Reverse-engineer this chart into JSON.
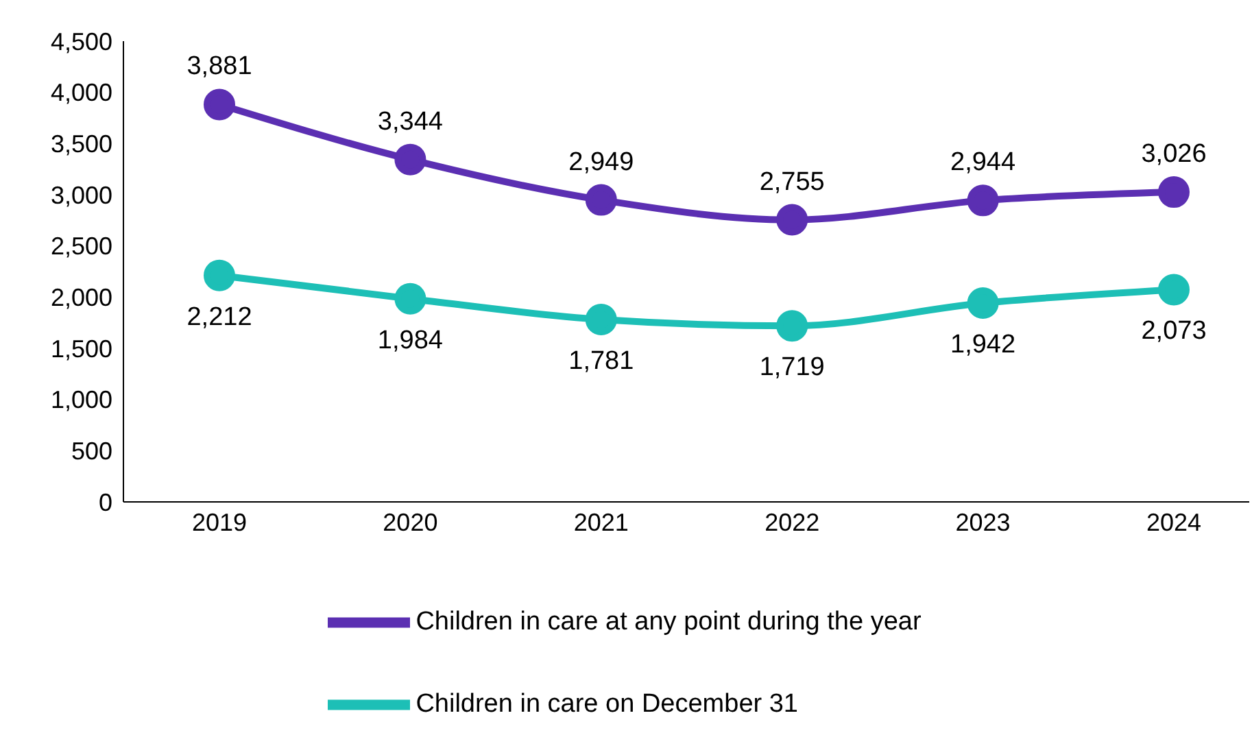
{
  "chart_data": {
    "type": "line",
    "categories": [
      "2019",
      "2020",
      "2021",
      "2022",
      "2023",
      "2024"
    ],
    "series": [
      {
        "name": "Children in care at any point during the year",
        "color": "#5b2fb2",
        "values": [
          3881,
          3344,
          2949,
          2755,
          2944,
          3026
        ],
        "value_labels": [
          "3,881",
          "3,344",
          "2,949",
          "2,755",
          "2,944",
          "3,026"
        ]
      },
      {
        "name": "Children in care on December 31",
        "color": "#1dbfb6",
        "values": [
          2212,
          1984,
          1781,
          1719,
          1942,
          2073
        ],
        "value_labels": [
          "2,212",
          "1,984",
          "1,781",
          "1,719",
          "1,942",
          "2,073"
        ]
      }
    ],
    "ylim": [
      0,
      4500
    ],
    "yticks": [
      0,
      500,
      {
        "value": 1000,
        "label": "1,000"
      },
      {
        "value": 1500,
        "label": "1,500"
      },
      {
        "value": 2000,
        "label": "2,000"
      },
      {
        "value": 2500,
        "label": "2,500"
      },
      {
        "value": 3000,
        "label": "3,000"
      },
      {
        "value": 3500,
        "label": "3,500"
      },
      {
        "value": 4000,
        "label": "4,000"
      },
      {
        "value": 4500,
        "label": "4,500"
      }
    ],
    "grid": false,
    "legend": "bottom",
    "marker": "circle",
    "line_style": "solid"
  }
}
